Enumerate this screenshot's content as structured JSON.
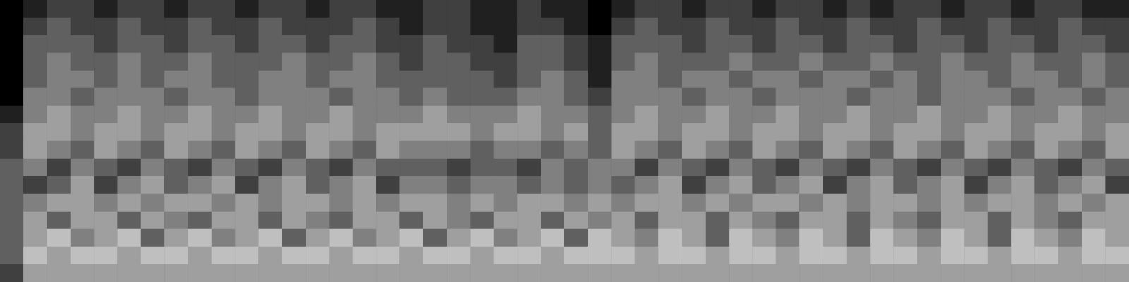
{
  "chart_data": {
    "type": "heatmap",
    "tick_labels": false,
    "grid": false,
    "zlim": [
      0,
      8
    ],
    "cells": [
      [
        0,
        1,
        2,
        2,
        1,
        2,
        2,
        1,
        2,
        2,
        1,
        2,
        2,
        1,
        2,
        2,
        1,
        1,
        2,
        2,
        1,
        1,
        2,
        1,
        1,
        0,
        1,
        2,
        2,
        1,
        2,
        2,
        1,
        2,
        2,
        1,
        2,
        1,
        2,
        2,
        1,
        2,
        2,
        1,
        2,
        2,
        1,
        1
      ],
      [
        0,
        2,
        3,
        2,
        2,
        3,
        2,
        2,
        3,
        2,
        2,
        3,
        2,
        2,
        2,
        3,
        2,
        1,
        2,
        2,
        1,
        1,
        2,
        2,
        1,
        0,
        2,
        3,
        2,
        2,
        3,
        2,
        2,
        3,
        2,
        2,
        3,
        2,
        2,
        3,
        2,
        2,
        3,
        2,
        2,
        3,
        2,
        2
      ],
      [
        0,
        3,
        3,
        3,
        2,
        3,
        3,
        2,
        3,
        3,
        2,
        3,
        3,
        2,
        3,
        3,
        2,
        2,
        3,
        2,
        2,
        1,
        3,
        3,
        2,
        1,
        3,
        3,
        3,
        2,
        3,
        3,
        2,
        3,
        3,
        2,
        3,
        3,
        2,
        3,
        3,
        2,
        3,
        3,
        2,
        3,
        3,
        2
      ],
      [
        0,
        3,
        4,
        3,
        3,
        4,
        3,
        3,
        4,
        3,
        3,
        3,
        4,
        3,
        3,
        4,
        3,
        2,
        3,
        3,
        2,
        2,
        3,
        3,
        2,
        1,
        3,
        4,
        3,
        3,
        3,
        4,
        3,
        3,
        4,
        3,
        3,
        4,
        3,
        3,
        4,
        3,
        3,
        4,
        3,
        3,
        4,
        3
      ],
      [
        0,
        3,
        4,
        4,
        3,
        4,
        3,
        4,
        4,
        3,
        3,
        4,
        4,
        3,
        4,
        4,
        3,
        3,
        3,
        3,
        3,
        2,
        3,
        4,
        3,
        1,
        4,
        4,
        3,
        4,
        4,
        3,
        4,
        4,
        3,
        4,
        4,
        3,
        4,
        3,
        4,
        4,
        3,
        4,
        4,
        3,
        4,
        3
      ],
      [
        0,
        4,
        4,
        3,
        4,
        4,
        4,
        3,
        4,
        4,
        3,
        4,
        4,
        4,
        3,
        4,
        4,
        3,
        4,
        3,
        3,
        3,
        4,
        4,
        3,
        2,
        4,
        4,
        4,
        3,
        4,
        4,
        3,
        4,
        4,
        4,
        3,
        4,
        4,
        3,
        4,
        4,
        4,
        3,
        4,
        4,
        3,
        4
      ],
      [
        1,
        4,
        5,
        4,
        4,
        5,
        4,
        4,
        5,
        4,
        4,
        5,
        4,
        4,
        5,
        4,
        4,
        4,
        5,
        4,
        4,
        4,
        5,
        4,
        4,
        3,
        4,
        5,
        4,
        4,
        5,
        4,
        4,
        5,
        4,
        4,
        5,
        4,
        4,
        5,
        4,
        4,
        5,
        4,
        4,
        5,
        4,
        4
      ],
      [
        2,
        5,
        5,
        4,
        5,
        5,
        4,
        5,
        5,
        4,
        5,
        5,
        4,
        5,
        5,
        4,
        5,
        5,
        5,
        5,
        4,
        5,
        5,
        4,
        5,
        3,
        5,
        5,
        4,
        5,
        5,
        4,
        5,
        5,
        4,
        5,
        5,
        4,
        5,
        5,
        4,
        5,
        5,
        4,
        5,
        5,
        4,
        5
      ],
      [
        2,
        5,
        4,
        3,
        5,
        4,
        3,
        5,
        4,
        3,
        5,
        4,
        3,
        5,
        4,
        3,
        5,
        4,
        4,
        4,
        3,
        4,
        4,
        3,
        4,
        3,
        5,
        4,
        3,
        5,
        4,
        3,
        5,
        4,
        3,
        5,
        4,
        3,
        5,
        4,
        3,
        5,
        4,
        3,
        5,
        4,
        3,
        5
      ],
      [
        3,
        4,
        2,
        4,
        3,
        2,
        4,
        3,
        2,
        4,
        3,
        2,
        4,
        3,
        2,
        4,
        3,
        3,
        3,
        2,
        3,
        3,
        2,
        4,
        3,
        4,
        4,
        2,
        4,
        3,
        2,
        4,
        3,
        2,
        4,
        3,
        2,
        4,
        3,
        2,
        4,
        3,
        2,
        4,
        3,
        2,
        4,
        3
      ],
      [
        3,
        2,
        3,
        5,
        2,
        4,
        5,
        3,
        4,
        5,
        2,
        4,
        5,
        3,
        4,
        5,
        2,
        4,
        4,
        3,
        4,
        4,
        3,
        4,
        3,
        4,
        3,
        4,
        5,
        2,
        4,
        5,
        3,
        4,
        5,
        2,
        4,
        5,
        3,
        4,
        5,
        2,
        4,
        5,
        3,
        4,
        5,
        2
      ],
      [
        3,
        4,
        5,
        5,
        4,
        5,
        4,
        5,
        5,
        4,
        5,
        4,
        5,
        5,
        4,
        5,
        4,
        5,
        5,
        4,
        5,
        4,
        5,
        5,
        4,
        5,
        4,
        5,
        5,
        4,
        5,
        4,
        5,
        5,
        4,
        5,
        4,
        5,
        5,
        4,
        5,
        4,
        5,
        5,
        4,
        5,
        4,
        5
      ],
      [
        3,
        5,
        3,
        5,
        5,
        3,
        5,
        4,
        3,
        5,
        5,
        3,
        5,
        4,
        3,
        5,
        5,
        3,
        5,
        4,
        3,
        5,
        5,
        3,
        5,
        4,
        5,
        3,
        5,
        5,
        3,
        5,
        4,
        3,
        5,
        5,
        3,
        5,
        4,
        3,
        5,
        5,
        3,
        5,
        4,
        3,
        5,
        5
      ],
      [
        3,
        5,
        6,
        4,
        5,
        6,
        3,
        5,
        6,
        4,
        5,
        6,
        3,
        5,
        6,
        4,
        5,
        6,
        3,
        5,
        6,
        4,
        5,
        6,
        3,
        6,
        5,
        4,
        6,
        5,
        3,
        6,
        5,
        4,
        6,
        5,
        3,
        6,
        5,
        4,
        6,
        5,
        3,
        6,
        5,
        4,
        6,
        5
      ],
      [
        3,
        6,
        5,
        6,
        6,
        5,
        6,
        6,
        5,
        6,
        6,
        5,
        6,
        6,
        5,
        6,
        6,
        5,
        6,
        6,
        5,
        6,
        6,
        5,
        6,
        6,
        6,
        5,
        6,
        6,
        5,
        6,
        6,
        5,
        6,
        6,
        5,
        6,
        6,
        5,
        6,
        6,
        5,
        6,
        6,
        5,
        6,
        6
      ],
      [
        2,
        5,
        5,
        5,
        5,
        5,
        5,
        5,
        5,
        5,
        5,
        5,
        5,
        5,
        5,
        5,
        5,
        5,
        5,
        5,
        5,
        5,
        5,
        5,
        5,
        5,
        5,
        5,
        5,
        5,
        5,
        5,
        5,
        5,
        5,
        5,
        5,
        5,
        5,
        5,
        5,
        5,
        5,
        5,
        5,
        5,
        5,
        5
      ]
    ]
  }
}
